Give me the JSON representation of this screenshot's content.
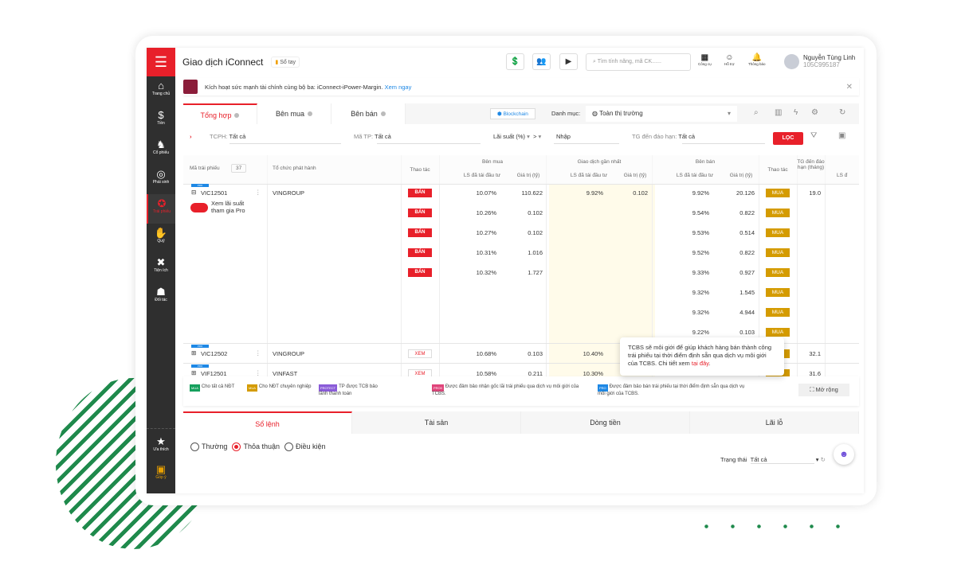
{
  "header": {
    "title": "Giao dịch iConnect",
    "notebook": "Sổ tay",
    "search_placeholder": "Tìm tính năng, mã CK......",
    "tools": [
      {
        "label": "Công cụ",
        "icon": "calendar-icon"
      },
      {
        "label": "Hỗ trợ",
        "icon": "support-icon"
      },
      {
        "label": "Thông báo",
        "icon": "bell-icon"
      }
    ],
    "user_name": "Nguyễn Tùng Linh",
    "user_id": "105C995187"
  },
  "sidebar": {
    "items": [
      {
        "label": "Trang chủ",
        "icon": "⌂"
      },
      {
        "label": "Tiền",
        "icon": "$"
      },
      {
        "label": "Cổ phiếu",
        "icon": "♞"
      },
      {
        "label": "Phái sinh",
        "icon": "◎"
      },
      {
        "label": "Trái phiếu",
        "icon": "✪",
        "active": true
      },
      {
        "label": "Quỹ",
        "icon": "✋"
      },
      {
        "label": "Tiện ích",
        "icon": "✖"
      },
      {
        "label": "Đối tác",
        "icon": "☗"
      }
    ],
    "favorites": "Ưa thích",
    "feedback": "Góp ý"
  },
  "banner": {
    "text": "Kích hoạt sức mạnh tài chính cùng bộ ba: iConnect-iPower-Margin.",
    "link": "Xem ngay"
  },
  "tabs": [
    "Tổng hợp",
    "Bên mua",
    "Bên bán"
  ],
  "blockchain": "Blockchain",
  "category_label": "Danh mục:",
  "category_value": "Toàn thị trường",
  "filters": {
    "tcph_label": "TCPH:",
    "tcph_value": "Tất cả",
    "matp_label": "Mã TP:",
    "matp_value": "Tất cả",
    "rate_label": "Lãi suất (%)",
    "op": ">",
    "rate_placeholder": "Nhập",
    "maturity_label": "TG đến đáo hạn:",
    "maturity_value": "Tất cả",
    "filter_button": "LỌC"
  },
  "table": {
    "headers": {
      "code": "Mã trái phiếu",
      "count": "37",
      "issuer": "Tổ chức phát hành",
      "action": "Thao tác",
      "buy": "Bên mua",
      "last": "Giao dịch gần nhất",
      "sell": "Bên bán",
      "rate": "LS đã tái đầu tư",
      "value": "Giá trị (tỷ)",
      "maturity": "TG đến đáo hạn (tháng)",
      "rate_short": "LS đ"
    },
    "buy_label": "BÁN",
    "sell_label": "MUA",
    "view_label": "XEM",
    "pro": "PRO",
    "toggle_label": "Xem lãi suất tham gia Pro",
    "group1": {
      "code": "VIC12501",
      "issuer": "VINGROUP",
      "last_rate": "9.92%",
      "last_value": "0.102",
      "maturity": "19.0",
      "buy": [
        [
          "10.07%",
          "110.622"
        ],
        [
          "10.26%",
          "0.102"
        ],
        [
          "10.27%",
          "0.102"
        ],
        [
          "10.31%",
          "1.016"
        ],
        [
          "10.32%",
          "1.727"
        ]
      ],
      "sell": [
        [
          "9.92%",
          "20.126"
        ],
        [
          "9.54%",
          "0.822"
        ],
        [
          "9.53%",
          "0.514"
        ],
        [
          "9.52%",
          "0.822"
        ],
        [
          "9.33%",
          "0.927"
        ],
        [
          "9.32%",
          "1.545"
        ],
        [
          "9.32%",
          "4.944"
        ],
        [
          "9.22%",
          "0.103"
        ]
      ]
    },
    "rows": [
      {
        "code": "VIC12502",
        "issuer": "VINGROUP",
        "buy_rate": "10.68%",
        "buy_value": "0.103",
        "last_rate": "10.40%",
        "maturity": "32.1"
      },
      {
        "code": "VIF12501",
        "issuer": "VINFAST",
        "buy_rate": "10.58%",
        "buy_value": "0.211",
        "last_rate": "10.30%",
        "maturity": "31.6"
      }
    ]
  },
  "tooltip": {
    "text": "TCBS sẽ môi giới để giúp khách hàng bán thành công trái phiếu tại thời điểm định sẵn qua dịch vụ môi giới của TCBS. Chi tiết xem",
    "link": "tại đây",
    "end": "."
  },
  "legend": [
    {
      "tag": "MUA",
      "color": "#16a05d",
      "text": "Cho tất cả NĐT"
    },
    {
      "tag": "MUA",
      "color": "#d49b00",
      "text": "Cho NĐT chuyên nghiệp"
    },
    {
      "tag": "PROTECT",
      "color": "#8a5cd8",
      "text": "TP được TCB bảo lãnh thanh toán"
    },
    {
      "tag": "PRO0",
      "color": "#e0457b",
      "text": "Được đảm bảo nhận gốc lãi trái phiếu qua dịch vụ môi giới của TCBS."
    },
    {
      "tag": "PRO",
      "color": "#1e88e5",
      "text": "Được đảm bảo bán trái phiếu tại thời điểm định sẵn qua dịch vụ môi giới của TCBS."
    }
  ],
  "expand": "Mở rộng",
  "bottom_tabs": [
    "Sổ lệnh",
    "Tài sản",
    "Dòng tiền",
    "Lãi lỗ"
  ],
  "order_types": [
    {
      "label": "Thường",
      "checked": false
    },
    {
      "label": "Thỏa thuận",
      "checked": true
    },
    {
      "label": "Điều kiện",
      "checked": false
    }
  ],
  "status_label": "Trạng thái",
  "status_value": "Tất cả",
  "colors": {
    "accent": "#e8202a",
    "buy": "#d49b00",
    "sidebar": "#2f2f2f"
  }
}
